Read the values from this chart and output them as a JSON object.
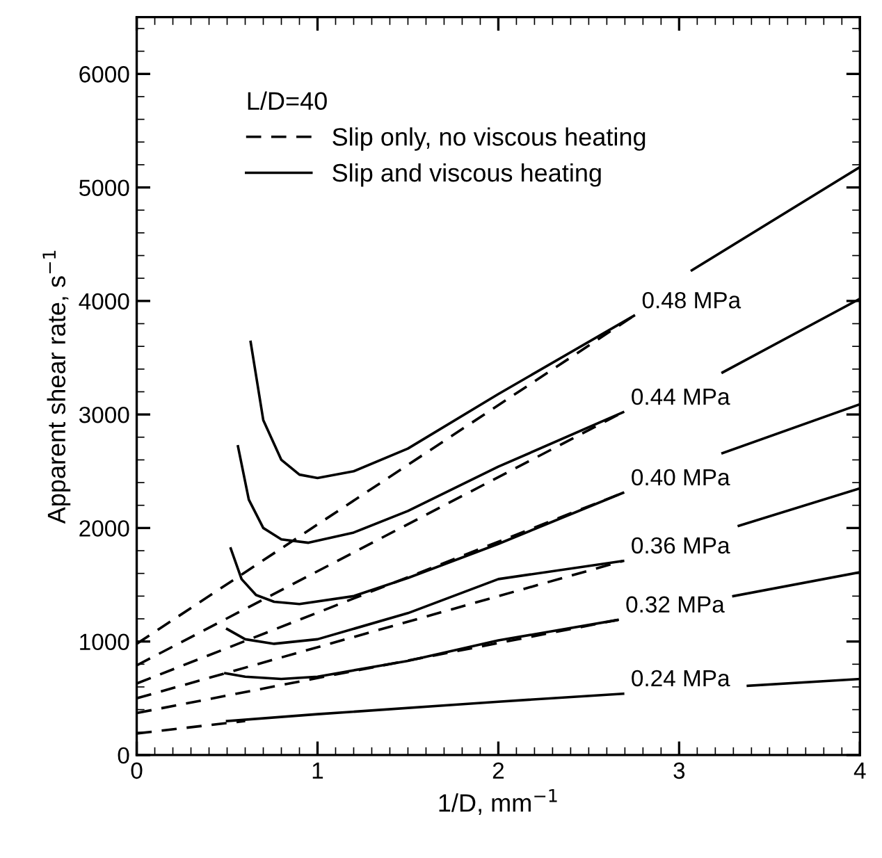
{
  "chart_data": {
    "type": "line",
    "xlabel": "1/D, mm$^{−1}$",
    "ylabel": "Apparent shear rate, s$^{−1}$",
    "legend_title": "L/D=40",
    "legend": "top left",
    "xlim": [
      0,
      4
    ],
    "ylim": [
      0,
      6500
    ],
    "xticks": [
      0,
      1,
      2,
      3,
      4
    ],
    "yticks": [
      0,
      1000,
      2000,
      3000,
      4000,
      5000,
      6000
    ],
    "grid": false,
    "series": [
      {
        "name": "Slip only, no viscous heating",
        "color": "#000000",
        "line_style": "dashed",
        "x": [
          0,
          2.75
        ],
        "values": [
          980,
          3870
        ]
      },
      {
        "color": "#000000",
        "line_style": "dashed",
        "x": [
          0,
          2.69
        ],
        "values": [
          790,
          3020
        ]
      },
      {
        "color": "#000000",
        "line_style": "dashed",
        "x": [
          0,
          2.69
        ],
        "values": [
          630,
          2310
        ]
      },
      {
        "color": "#000000",
        "line_style": "dashed",
        "x": [
          0,
          2.69
        ],
        "values": [
          500,
          1710
        ]
      },
      {
        "color": "#000000",
        "line_style": "dashed",
        "x": [
          0,
          2.66
        ],
        "values": [
          370,
          1190
        ]
      },
      {
        "color": "#000000",
        "line_style": "dashed",
        "x": [
          0,
          0.6
        ],
        "values": [
          190,
          300
        ]
      },
      {
        "name": "Slip and viscous heating",
        "color": "#000000",
        "line_style": "solid",
        "x": [
          0.63,
          0.7,
          0.8,
          0.9,
          1.0,
          1.2,
          1.5,
          2.0,
          2.75,
          2.9,
          3.07,
          4
        ],
        "values": [
          3640,
          2950,
          2600,
          2470,
          2440,
          2500,
          2700,
          3180,
          3870,
          null,
          4270,
          5180
        ]
      },
      {
        "color": "#000000",
        "line_style": "solid",
        "x": [
          0.56,
          0.62,
          0.7,
          0.8,
          0.95,
          1.2,
          1.5,
          2.0,
          2.69,
          3.0,
          3.24,
          4
        ],
        "values": [
          2720,
          2250,
          2000,
          1900,
          1870,
          1960,
          2150,
          2540,
          3020,
          null,
          3370,
          4020
        ]
      },
      {
        "color": "#000000",
        "line_style": "solid",
        "x": [
          0.52,
          0.58,
          0.66,
          0.76,
          0.9,
          1.2,
          1.5,
          2.0,
          2.69,
          3.0,
          3.24,
          4
        ],
        "values": [
          1820,
          1550,
          1410,
          1350,
          1330,
          1400,
          1560,
          1860,
          2310,
          null,
          2660,
          3090
        ]
      },
      {
        "color": "#000000",
        "line_style": "solid",
        "x": [
          0.5,
          0.6,
          0.76,
          1.0,
          1.5,
          2.0,
          2.69,
          3.0,
          3.33,
          4
        ],
        "values": [
          1110,
          1020,
          980,
          1020,
          1250,
          1550,
          1710,
          null,
          2020,
          2350
        ]
      },
      {
        "color": "#000000",
        "line_style": "solid",
        "x": [
          0.49,
          0.6,
          0.8,
          1.0,
          1.5,
          2.0,
          2.66,
          3.0,
          3.3,
          4
        ],
        "values": [
          720,
          690,
          670,
          690,
          830,
          1010,
          1190,
          null,
          1400,
          1610
        ]
      },
      {
        "color": "#000000",
        "line_style": "solid",
        "x": [
          0.5,
          1.0,
          2.0,
          2.69,
          3.0,
          3.38,
          4
        ],
        "values": [
          300,
          360,
          470,
          540,
          null,
          610,
          670
        ]
      }
    ],
    "annotations": [
      {
        "text": "0.48 MPa",
        "x": 2.75,
        "y": 3870
      },
      {
        "text": "0.44 MPa",
        "x": 2.69,
        "y": 3020
      },
      {
        "text": "0.40 MPa",
        "x": 2.69,
        "y": 2310
      },
      {
        "text": "0.36 MPa",
        "x": 2.69,
        "y": 1710
      },
      {
        "text": "0.32 MPa",
        "x": 2.66,
        "y": 1190
      },
      {
        "text": "0.24 MPa",
        "x": 2.69,
        "y": 540
      }
    ]
  }
}
